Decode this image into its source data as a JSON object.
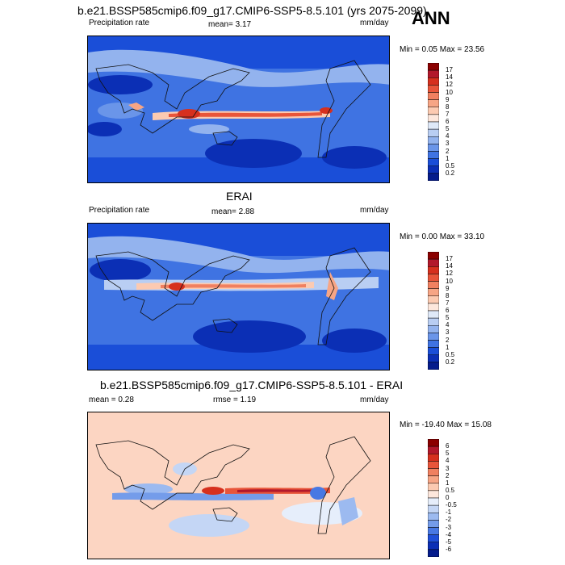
{
  "ann_label": "ANN",
  "panels": [
    {
      "title": "b.e21.BSSP585cmip6.f09_g17.CMIP6-SSP5-8.5.101 (yrs 2075-2099)",
      "left_label": "Precipitation rate",
      "center_label": "mean=  3.17",
      "units": "mm/day",
      "minmax": "Min =   0.05 Max =  23.56",
      "levels": [
        "17",
        "14",
        "12",
        "10",
        "9",
        "8",
        "7",
        "6",
        "5",
        "4",
        "3",
        "2",
        "1",
        "0.5",
        "0.2"
      ],
      "colors": [
        "#8b0000",
        "#b2182b",
        "#d6301e",
        "#e8553a",
        "#f08060",
        "#f7a585",
        "#fccab1",
        "#fde7dc",
        "#dfe9f8",
        "#b9cef3",
        "#93b3ee",
        "#6a95e9",
        "#3f73e2",
        "#1a4ed8",
        "#0b2fb5",
        "#051c8c"
      ]
    },
    {
      "title": "ERAI",
      "left_label": "Precipitation rate",
      "center_label": "mean=  2.88",
      "units": "mm/day",
      "minmax": "Min =   0.00 Max =  33.10",
      "levels": [
        "17",
        "14",
        "12",
        "10",
        "9",
        "8",
        "7",
        "6",
        "5",
        "4",
        "3",
        "2",
        "1",
        "0.5",
        "0.2"
      ],
      "colors": [
        "#8b0000",
        "#b2182b",
        "#d6301e",
        "#e8553a",
        "#f08060",
        "#f7a585",
        "#fccab1",
        "#fde7dc",
        "#dfe9f8",
        "#b9cef3",
        "#93b3ee",
        "#6a95e9",
        "#3f73e2",
        "#1a4ed8",
        "#0b2fb5",
        "#051c8c"
      ]
    },
    {
      "title": "b.e21.BSSP585cmip6.f09_g17.CMIP6-SSP5-8.5.101 - ERAI",
      "left_label": "mean =   0.28",
      "center_label": "rmse =   1.19",
      "units": "mm/day",
      "minmax": "Min = -19.40 Max =  15.08",
      "levels": [
        "6",
        "5",
        "4",
        "3",
        "2",
        "1",
        "0.5",
        "0",
        "-0.5",
        "-1",
        "-2",
        "-3",
        "-4",
        "-5",
        "-6"
      ],
      "colors": [
        "#8b0000",
        "#b2182b",
        "#d6301e",
        "#e8553a",
        "#f08060",
        "#f7a585",
        "#fccab1",
        "#fde7dc",
        "#e6eefb",
        "#c4d6f5",
        "#9cbaf0",
        "#749cea",
        "#4878e3",
        "#1f4fd8",
        "#0b2fb5",
        "#051c8c"
      ]
    }
  ]
}
